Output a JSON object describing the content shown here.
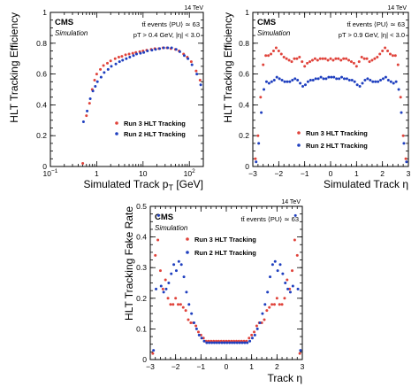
{
  "colors": {
    "run3": "#e0433b",
    "run2": "#1f3fbf"
  },
  "chart_data": [
    {
      "type": "scatter",
      "experiment": "CMS",
      "label": "Simulation",
      "energy": "14 TeV",
      "info_line1": "tt̄ events  ⟨PU⟩ ≃ 63",
      "info_line2": "pT > 0.4 GeV, |η| < 3.0",
      "xlabel": "Simulated Track p",
      "xlabel_sub": "T",
      "xlabel_unit": " [GeV]",
      "ylabel": "HLT Tracking Efficiency",
      "xscale": "log",
      "xlim": [
        0.1,
        200
      ],
      "ylim": [
        0,
        1
      ],
      "xticks": [
        {
          "v": 0.1,
          "base": "10",
          "exp": "−1"
        },
        {
          "v": 1,
          "base": "1",
          "exp": ""
        },
        {
          "v": 10,
          "base": "10",
          "exp": ""
        },
        {
          "v": 100,
          "base": "10",
          "exp": "2"
        }
      ],
      "yticks": [
        "0",
        "0.2",
        "0.4",
        "0.6",
        "0.8",
        "1"
      ],
      "legend_position": "center-right",
      "legend_labels": [
        "Run 3 HLT Tracking",
        "Run 2 HLT Tracking"
      ],
      "series": [
        {
          "name": "Run 3 HLT Tracking",
          "x": [
            0.5,
            0.6,
            0.7,
            0.8,
            0.9,
            1.0,
            1.2,
            1.4,
            1.7,
            2.0,
            2.5,
            3.0,
            3.5,
            4.2,
            5,
            6,
            7,
            8.5,
            10,
            12,
            15,
            18,
            22,
            27,
            33,
            40,
            50,
            60,
            75,
            90,
            110,
            140,
            170
          ],
          "y": [
            0.02,
            0.33,
            0.41,
            0.5,
            0.56,
            0.6,
            0.63,
            0.655,
            0.67,
            0.685,
            0.7,
            0.71,
            0.715,
            0.725,
            0.73,
            0.735,
            0.74,
            0.745,
            0.75,
            0.755,
            0.76,
            0.765,
            0.765,
            0.77,
            0.77,
            0.765,
            0.76,
            0.75,
            0.73,
            0.71,
            0.68,
            0.62,
            0.56
          ]
        },
        {
          "name": "Run 2 HLT Tracking",
          "x": [
            0.5,
            0.6,
            0.7,
            0.8,
            0.9,
            1.0,
            1.2,
            1.4,
            1.7,
            2.0,
            2.5,
            3.0,
            3.5,
            4.2,
            5,
            6,
            7,
            8.5,
            10,
            12,
            15,
            18,
            22,
            27,
            33,
            40,
            50,
            60,
            75,
            90,
            110,
            140,
            170
          ],
          "y": [
            0.29,
            0.36,
            0.44,
            0.49,
            0.52,
            0.55,
            0.58,
            0.61,
            0.63,
            0.65,
            0.665,
            0.68,
            0.69,
            0.7,
            0.71,
            0.72,
            0.73,
            0.735,
            0.74,
            0.75,
            0.755,
            0.76,
            0.765,
            0.77,
            0.77,
            0.77,
            0.76,
            0.745,
            0.72,
            0.7,
            0.66,
            0.6,
            0.53
          ]
        }
      ]
    },
    {
      "type": "scatter",
      "experiment": "CMS",
      "label": "Simulation",
      "energy": "14 TeV",
      "info_line1": "tt̄ events  ⟨PU⟩ ≃ 63",
      "info_line2": "pT > 0.9 GeV, |η| < 3.0",
      "xlabel": "Simulated Track η",
      "ylabel": "HLT Tracking Efficiency",
      "xlim": [
        -3,
        3
      ],
      "ylim": [
        0,
        1
      ],
      "xticks": [
        {
          "v": -3,
          "t": "−3"
        },
        {
          "v": -2,
          "t": "−2"
        },
        {
          "v": -1,
          "t": "−1"
        },
        {
          "v": 0,
          "t": "0"
        },
        {
          "v": 1,
          "t": "1"
        },
        {
          "v": 2,
          "t": "2"
        },
        {
          "v": 3,
          "t": "3"
        }
      ],
      "yticks": [
        "0",
        "0.2",
        "0.4",
        "0.6",
        "0.8",
        "1"
      ],
      "legend_position": "bottom-center",
      "legend_labels": [
        "Run 3 HLT Tracking",
        "Run 2 HLT Tracking"
      ],
      "series": [
        {
          "name": "Run 3 HLT Tracking",
          "x": [
            -2.9,
            -2.8,
            -2.7,
            -2.6,
            -2.5,
            -2.4,
            -2.3,
            -2.2,
            -2.1,
            -2.0,
            -1.9,
            -1.8,
            -1.7,
            -1.6,
            -1.5,
            -1.4,
            -1.3,
            -1.2,
            -1.1,
            -1.0,
            -0.9,
            -0.8,
            -0.7,
            -0.6,
            -0.5,
            -0.4,
            -0.3,
            -0.2,
            -0.1,
            0.0,
            0.1,
            0.2,
            0.3,
            0.4,
            0.5,
            0.6,
            0.7,
            0.8,
            0.9,
            1.0,
            1.1,
            1.2,
            1.3,
            1.4,
            1.5,
            1.6,
            1.7,
            1.8,
            1.9,
            2.0,
            2.1,
            2.2,
            2.3,
            2.4,
            2.5,
            2.6,
            2.7,
            2.8,
            2.9
          ],
          "y": [
            0.05,
            0.2,
            0.45,
            0.66,
            0.72,
            0.72,
            0.73,
            0.75,
            0.77,
            0.75,
            0.73,
            0.71,
            0.7,
            0.69,
            0.68,
            0.7,
            0.7,
            0.71,
            0.68,
            0.65,
            0.67,
            0.68,
            0.69,
            0.7,
            0.69,
            0.7,
            0.7,
            0.7,
            0.69,
            0.7,
            0.69,
            0.7,
            0.7,
            0.69,
            0.7,
            0.7,
            0.69,
            0.68,
            0.67,
            0.65,
            0.68,
            0.71,
            0.7,
            0.7,
            0.68,
            0.69,
            0.7,
            0.71,
            0.73,
            0.75,
            0.77,
            0.75,
            0.73,
            0.72,
            0.72,
            0.66,
            0.45,
            0.2,
            0.05
          ]
        },
        {
          "name": "Run 2 HLT Tracking",
          "x": [
            -2.9,
            -2.8,
            -2.7,
            -2.6,
            -2.5,
            -2.4,
            -2.3,
            -2.2,
            -2.1,
            -2.0,
            -1.9,
            -1.8,
            -1.7,
            -1.6,
            -1.5,
            -1.4,
            -1.3,
            -1.2,
            -1.1,
            -1.0,
            -0.9,
            -0.8,
            -0.7,
            -0.6,
            -0.5,
            -0.4,
            -0.3,
            -0.2,
            -0.1,
            0.0,
            0.1,
            0.2,
            0.3,
            0.4,
            0.5,
            0.6,
            0.7,
            0.8,
            0.9,
            1.0,
            1.1,
            1.2,
            1.3,
            1.4,
            1.5,
            1.6,
            1.7,
            1.8,
            1.9,
            2.0,
            2.1,
            2.2,
            2.3,
            2.4,
            2.5,
            2.6,
            2.7,
            2.8,
            2.9
          ],
          "y": [
            0.03,
            0.15,
            0.35,
            0.5,
            0.55,
            0.54,
            0.55,
            0.56,
            0.58,
            0.57,
            0.56,
            0.55,
            0.55,
            0.55,
            0.56,
            0.57,
            0.56,
            0.54,
            0.52,
            0.53,
            0.55,
            0.56,
            0.56,
            0.57,
            0.57,
            0.58,
            0.57,
            0.57,
            0.58,
            0.58,
            0.58,
            0.57,
            0.57,
            0.58,
            0.57,
            0.57,
            0.56,
            0.56,
            0.55,
            0.53,
            0.52,
            0.54,
            0.56,
            0.57,
            0.56,
            0.55,
            0.55,
            0.55,
            0.56,
            0.57,
            0.58,
            0.56,
            0.55,
            0.54,
            0.55,
            0.5,
            0.35,
            0.15,
            0.03
          ]
        }
      ]
    },
    {
      "type": "scatter",
      "experiment": "CMS",
      "label": "Simulation",
      "energy": "14 TeV",
      "info_line1": "tt̄ events  ⟨PU⟩ ≃ 63",
      "info_line2": "",
      "xlabel": "Track η",
      "ylabel": "HLT Tracking Fake Rate",
      "xlim": [
        -3,
        3
      ],
      "ylim": [
        0,
        0.5
      ],
      "xticks": [
        {
          "v": -3,
          "t": "−3"
        },
        {
          "v": -2,
          "t": "−2"
        },
        {
          "v": -1,
          "t": "−1"
        },
        {
          "v": 0,
          "t": "0"
        },
        {
          "v": 1,
          "t": "1"
        },
        {
          "v": 2,
          "t": "2"
        },
        {
          "v": 3,
          "t": "3"
        }
      ],
      "yticks": [
        "0",
        "0.1",
        "0.2",
        "0.3",
        "0.4",
        "0.5"
      ],
      "legend_position": "top-center",
      "legend_labels": [
        "Run 3 HLT Tracking",
        "Run 2 HLT Tracking"
      ],
      "series": [
        {
          "name": "Run 3 HLT Tracking",
          "x": [
            -2.9,
            -2.8,
            -2.7,
            -2.6,
            -2.5,
            -2.4,
            -2.3,
            -2.2,
            -2.1,
            -2.0,
            -1.9,
            -1.8,
            -1.7,
            -1.6,
            -1.5,
            -1.4,
            -1.3,
            -1.2,
            -1.1,
            -1.0,
            -0.9,
            -0.8,
            -0.7,
            -0.6,
            -0.5,
            -0.4,
            -0.3,
            -0.2,
            -0.1,
            0.0,
            0.1,
            0.2,
            0.3,
            0.4,
            0.5,
            0.6,
            0.7,
            0.8,
            0.9,
            1.0,
            1.1,
            1.2,
            1.3,
            1.4,
            1.5,
            1.6,
            1.7,
            1.8,
            1.9,
            2.0,
            2.1,
            2.2,
            2.3,
            2.4,
            2.5,
            2.6,
            2.7,
            2.8,
            2.9
          ],
          "y": [
            0.02,
            0.34,
            0.39,
            0.29,
            0.23,
            0.26,
            0.2,
            0.18,
            0.18,
            0.2,
            0.18,
            0.18,
            0.17,
            0.16,
            0.13,
            0.12,
            0.12,
            0.11,
            0.09,
            0.08,
            0.07,
            0.06,
            0.06,
            0.06,
            0.06,
            0.06,
            0.06,
            0.06,
            0.06,
            0.06,
            0.06,
            0.06,
            0.06,
            0.06,
            0.06,
            0.06,
            0.06,
            0.06,
            0.07,
            0.08,
            0.09,
            0.11,
            0.12,
            0.12,
            0.13,
            0.16,
            0.17,
            0.18,
            0.18,
            0.2,
            0.18,
            0.18,
            0.2,
            0.26,
            0.23,
            0.29,
            0.39,
            0.34,
            0.02
          ]
        },
        {
          "name": "Run 2 HLT Tracking",
          "x": [
            -2.9,
            -2.8,
            -2.7,
            -2.6,
            -2.5,
            -2.4,
            -2.3,
            -2.2,
            -2.1,
            -2.0,
            -1.9,
            -1.8,
            -1.7,
            -1.6,
            -1.5,
            -1.4,
            -1.3,
            -1.2,
            -1.1,
            -1.0,
            -0.9,
            -0.8,
            -0.7,
            -0.6,
            -0.5,
            -0.4,
            -0.3,
            -0.2,
            -0.1,
            0.0,
            0.1,
            0.2,
            0.3,
            0.4,
            0.5,
            0.6,
            0.7,
            0.8,
            0.9,
            1.0,
            1.1,
            1.2,
            1.3,
            1.4,
            1.5,
            1.6,
            1.7,
            1.8,
            1.9,
            2.0,
            2.1,
            2.2,
            2.3,
            2.4,
            2.5,
            2.6,
            2.7,
            2.8,
            2.9
          ],
          "y": [
            0.03,
            0.23,
            0.47,
            0.24,
            0.22,
            0.23,
            0.25,
            0.28,
            0.31,
            0.29,
            0.32,
            0.31,
            0.27,
            0.22,
            0.18,
            0.15,
            0.12,
            0.1,
            0.08,
            0.07,
            0.06,
            0.055,
            0.055,
            0.055,
            0.055,
            0.055,
            0.055,
            0.055,
            0.055,
            0.055,
            0.055,
            0.055,
            0.055,
            0.055,
            0.055,
            0.055,
            0.055,
            0.055,
            0.06,
            0.07,
            0.08,
            0.1,
            0.12,
            0.15,
            0.18,
            0.22,
            0.27,
            0.31,
            0.32,
            0.29,
            0.31,
            0.28,
            0.25,
            0.23,
            0.22,
            0.24,
            0.47,
            0.23,
            0.03
          ]
        }
      ]
    }
  ]
}
